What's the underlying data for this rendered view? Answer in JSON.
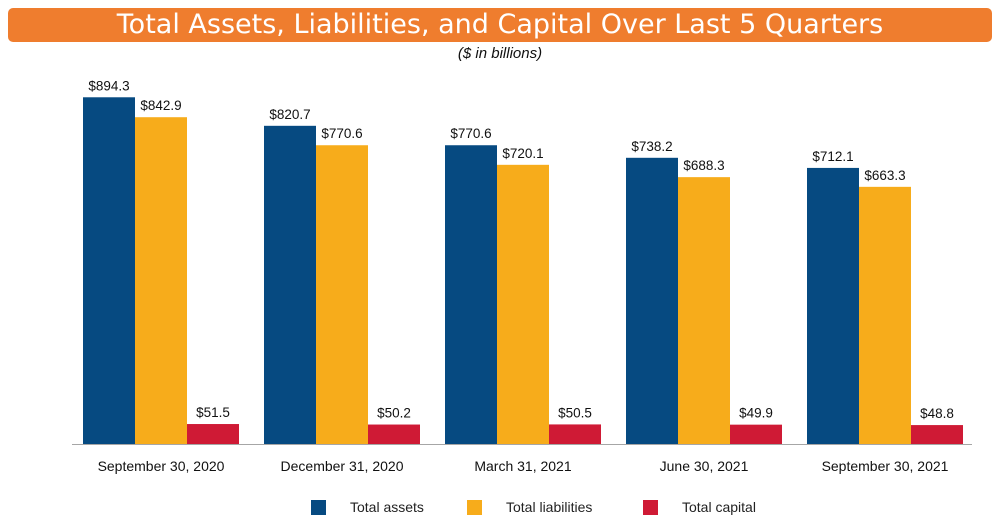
{
  "chart_data": {
    "type": "bar",
    "title": "Total Assets, Liabilities, and Capital Over Last 5 Quarters",
    "subtitle": "($ in billions)",
    "xlabel": "",
    "ylabel": "",
    "ylim": [
      0,
      900
    ],
    "grid": false,
    "legend_position": "bottom",
    "value_prefix": "$",
    "categories": [
      "September 30, 2020",
      "December 31, 2020",
      "March 31, 2021",
      "June 30, 2021",
      "September 30, 2021"
    ],
    "series": [
      {
        "name": "Total assets",
        "color": "#064a81",
        "values": [
          894.3,
          820.7,
          770.6,
          738.2,
          712.1
        ]
      },
      {
        "name": "Total liabilities",
        "color": "#f7ac1b",
        "values": [
          842.9,
          770.6,
          720.1,
          688.3,
          663.3
        ]
      },
      {
        "name": "Total capital",
        "color": "#cf1a35",
        "values": [
          51.5,
          50.2,
          50.5,
          49.9,
          48.8
        ]
      }
    ]
  }
}
